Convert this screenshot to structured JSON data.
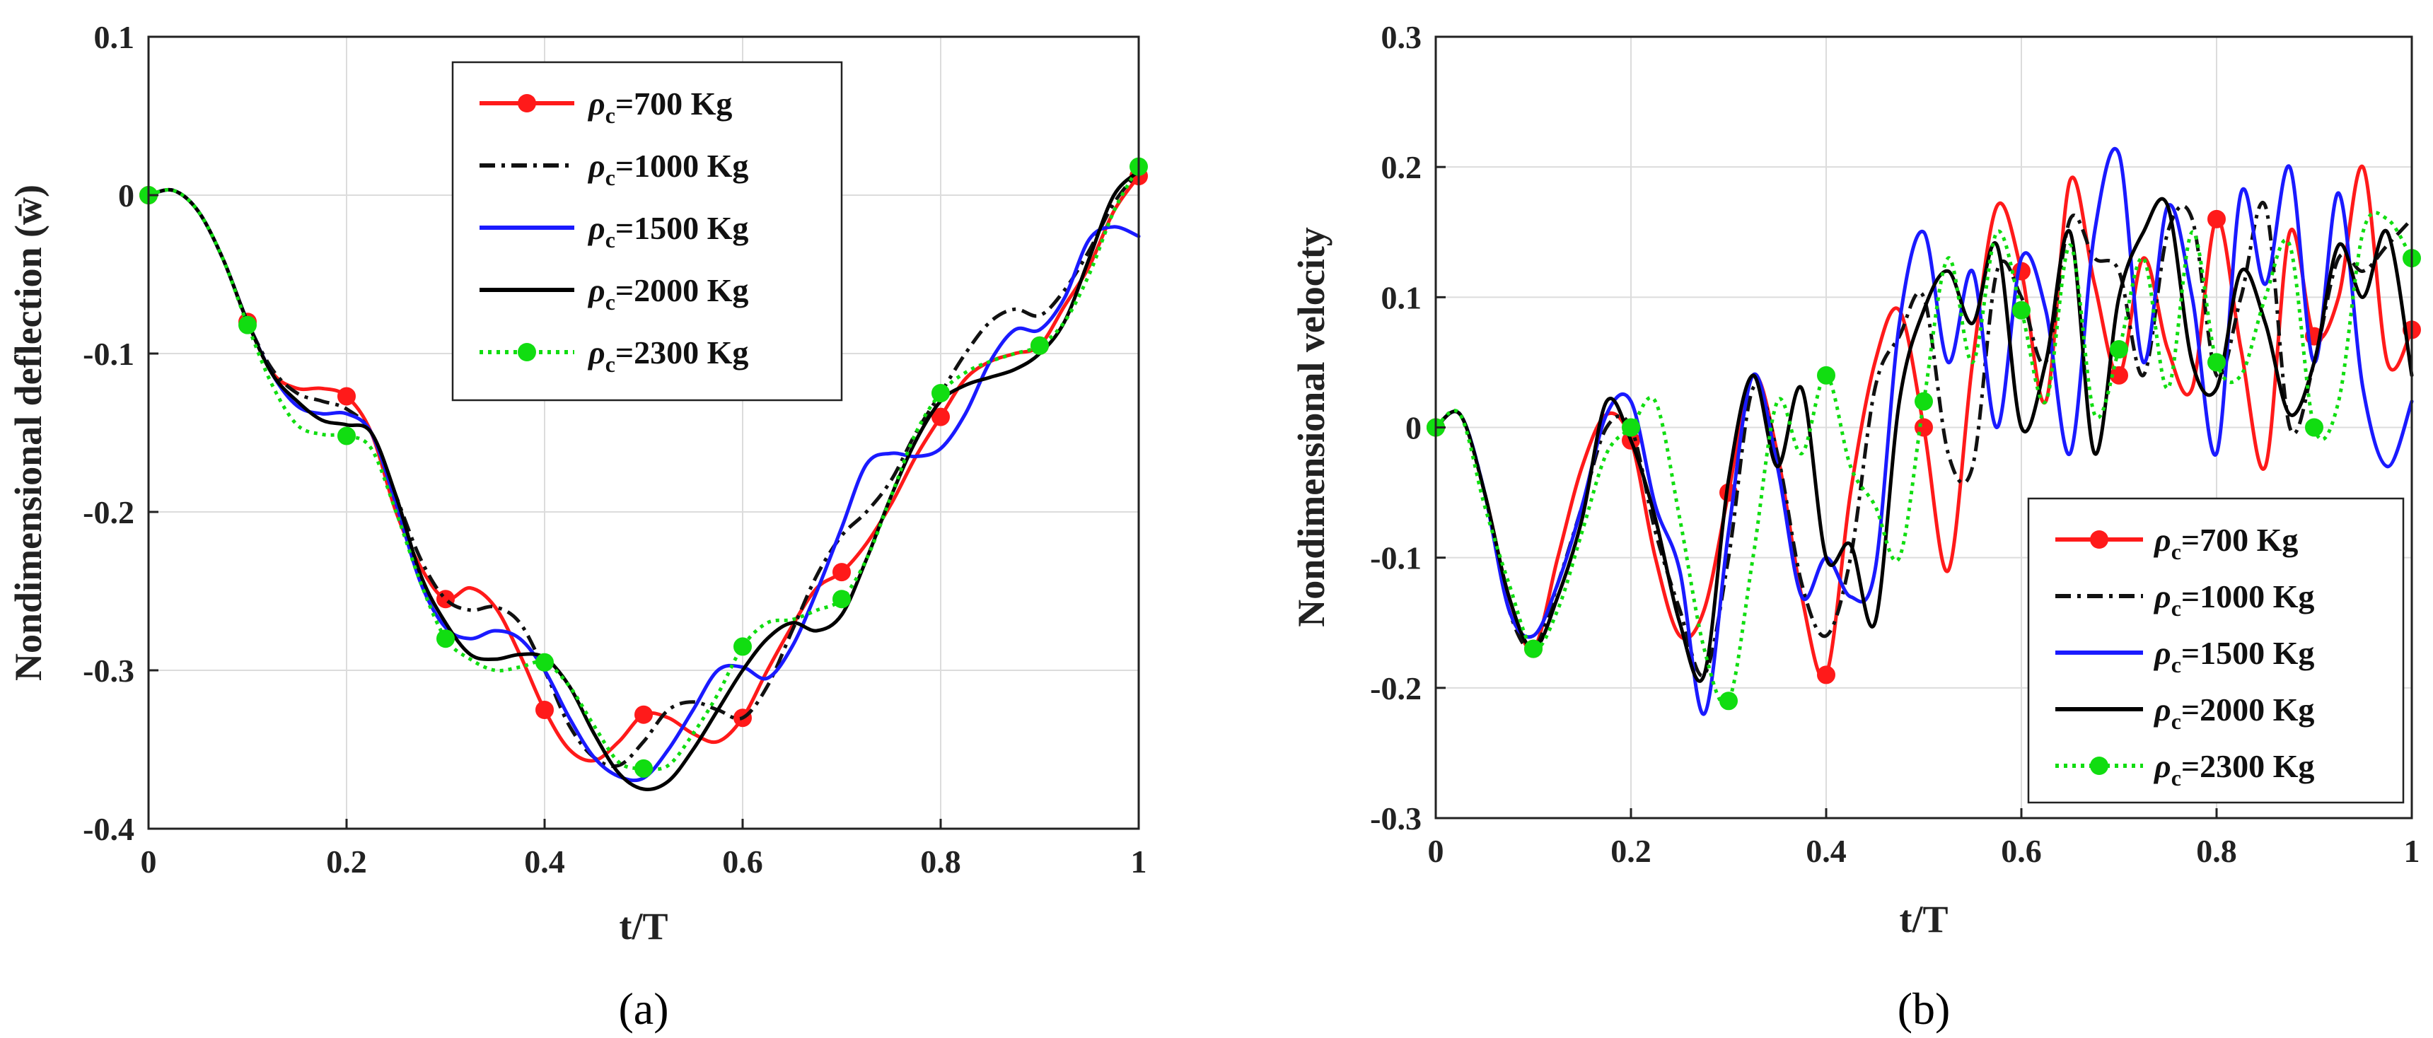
{
  "chart_data": [
    {
      "type": "line",
      "caption": "(a)",
      "xlabel": "t/T",
      "ylabel": "Nondimensional deflection (w̄)",
      "xlim": [
        0,
        1
      ],
      "ylim": [
        -0.4,
        0.1
      ],
      "xticks": [
        "0",
        "0.2",
        "0.4",
        "0.6",
        "0.8",
        "1"
      ],
      "yticks": [
        "-0.4",
        "-0.3",
        "-0.2",
        "-0.1",
        "0",
        "0.1"
      ],
      "grid": true,
      "legend_position": "top-right",
      "x": [
        0,
        0.025,
        0.05,
        0.075,
        0.1,
        0.125,
        0.15,
        0.175,
        0.2,
        0.225,
        0.25,
        0.275,
        0.3,
        0.325,
        0.35,
        0.375,
        0.4,
        0.425,
        0.45,
        0.475,
        0.5,
        0.525,
        0.55,
        0.575,
        0.6,
        0.625,
        0.65,
        0.675,
        0.7,
        0.725,
        0.75,
        0.775,
        0.8,
        0.825,
        0.85,
        0.875,
        0.9,
        0.925,
        0.95,
        0.975,
        1
      ],
      "series": [
        {
          "name": "ρc=700 Kg",
          "symbol": "ρ",
          "subscript": "c",
          "rest": "=700 Kg",
          "color": "#ff1a1a",
          "dash": "",
          "marker": true,
          "values": [
            0,
            0.003,
            -0.01,
            -0.04,
            -0.08,
            -0.112,
            -0.122,
            -0.122,
            -0.127,
            -0.15,
            -0.2,
            -0.235,
            -0.255,
            -0.248,
            -0.26,
            -0.29,
            -0.325,
            -0.35,
            -0.357,
            -0.345,
            -0.328,
            -0.33,
            -0.34,
            -0.345,
            -0.33,
            -0.3,
            -0.272,
            -0.248,
            -0.238,
            -0.22,
            -0.195,
            -0.165,
            -0.14,
            -0.116,
            -0.105,
            -0.1,
            -0.095,
            -0.07,
            -0.045,
            -0.01,
            0.012
          ]
        },
        {
          "name": "ρc=1000 Kg",
          "symbol": "ρ",
          "subscript": "c",
          "rest": "=1000 Kg",
          "color": "#111111",
          "dash": "22,9,5,9",
          "marker": false,
          "values": [
            0,
            0.003,
            -0.01,
            -0.04,
            -0.08,
            -0.11,
            -0.125,
            -0.13,
            -0.135,
            -0.15,
            -0.19,
            -0.23,
            -0.255,
            -0.262,
            -0.26,
            -0.27,
            -0.3,
            -0.335,
            -0.355,
            -0.36,
            -0.345,
            -0.325,
            -0.32,
            -0.325,
            -0.33,
            -0.31,
            -0.275,
            -0.24,
            -0.215,
            -0.2,
            -0.18,
            -0.15,
            -0.125,
            -0.1,
            -0.08,
            -0.072,
            -0.076,
            -0.06,
            -0.035,
            -0.005,
            0.015
          ]
        },
        {
          "name": "ρc=1500 Kg",
          "symbol": "ρ",
          "subscript": "c",
          "rest": "=1500 Kg",
          "color": "#1a1aff",
          "dash": "",
          "marker": false,
          "values": [
            0,
            0.003,
            -0.01,
            -0.04,
            -0.08,
            -0.113,
            -0.133,
            -0.138,
            -0.138,
            -0.15,
            -0.195,
            -0.245,
            -0.273,
            -0.28,
            -0.275,
            -0.28,
            -0.3,
            -0.33,
            -0.355,
            -0.367,
            -0.368,
            -0.35,
            -0.325,
            -0.3,
            -0.298,
            -0.305,
            -0.285,
            -0.25,
            -0.21,
            -0.17,
            -0.163,
            -0.165,
            -0.16,
            -0.138,
            -0.105,
            -0.085,
            -0.085,
            -0.065,
            -0.028,
            -0.02,
            -0.026
          ]
        },
        {
          "name": "ρc=2000 Kg",
          "symbol": "ρ",
          "subscript": "c",
          "rest": "=2000 Kg",
          "color": "#000000",
          "dash": "",
          "marker": false,
          "values": [
            0,
            0.003,
            -0.01,
            -0.04,
            -0.08,
            -0.113,
            -0.13,
            -0.142,
            -0.145,
            -0.15,
            -0.19,
            -0.24,
            -0.27,
            -0.29,
            -0.293,
            -0.29,
            -0.292,
            -0.31,
            -0.34,
            -0.365,
            -0.375,
            -0.37,
            -0.35,
            -0.325,
            -0.3,
            -0.28,
            -0.27,
            -0.275,
            -0.265,
            -0.23,
            -0.19,
            -0.155,
            -0.13,
            -0.12,
            -0.115,
            -0.11,
            -0.1,
            -0.08,
            -0.04,
            0,
            0.015
          ]
        },
        {
          "name": "ρc=2300 Kg",
          "symbol": "ρ",
          "subscript": "c",
          "rest": "=2300 Kg",
          "color": "#11dd11",
          "dash": "5,7",
          "marker": true,
          "values": [
            0,
            0.003,
            -0.01,
            -0.04,
            -0.082,
            -0.12,
            -0.145,
            -0.151,
            -0.152,
            -0.16,
            -0.2,
            -0.245,
            -0.28,
            -0.293,
            -0.3,
            -0.298,
            -0.295,
            -0.31,
            -0.335,
            -0.358,
            -0.362,
            -0.36,
            -0.34,
            -0.315,
            -0.285,
            -0.27,
            -0.268,
            -0.262,
            -0.255,
            -0.23,
            -0.19,
            -0.15,
            -0.125,
            -0.112,
            -0.105,
            -0.1,
            -0.095,
            -0.08,
            -0.05,
            -0.01,
            0.018
          ]
        }
      ]
    },
    {
      "type": "line",
      "caption": "(b)",
      "xlabel": "t/T",
      "ylabel": "Nondimensional velocity",
      "xlim": [
        0,
        1
      ],
      "ylim": [
        -0.3,
        0.3
      ],
      "xticks": [
        "0",
        "0.2",
        "0.4",
        "0.6",
        "0.8",
        "1"
      ],
      "yticks": [
        "-0.3",
        "-0.2",
        "-0.1",
        "0",
        "0.1",
        "0.2",
        "0.3"
      ],
      "grid": true,
      "legend_position": "bottom-right",
      "x": [
        0,
        0.025,
        0.05,
        0.075,
        0.1,
        0.125,
        0.15,
        0.175,
        0.2,
        0.225,
        0.25,
        0.275,
        0.3,
        0.325,
        0.35,
        0.375,
        0.4,
        0.425,
        0.45,
        0.475,
        0.5,
        0.525,
        0.55,
        0.575,
        0.6,
        0.625,
        0.65,
        0.675,
        0.7,
        0.725,
        0.75,
        0.775,
        0.8,
        0.825,
        0.85,
        0.875,
        0.9,
        0.925,
        0.95,
        0.975,
        1
      ],
      "series": [
        {
          "name": "ρc=700 Kg",
          "symbol": "ρ",
          "subscript": "c",
          "rest": "=700 Kg",
          "color": "#ff1a1a",
          "dash": "",
          "marker": true,
          "values": [
            0,
            0.01,
            -0.05,
            -0.13,
            -0.17,
            -0.1,
            -0.03,
            0.01,
            -0.01,
            -0.1,
            -0.16,
            -0.14,
            -0.05,
            0.04,
            -0.02,
            -0.13,
            -0.19,
            -0.05,
            0.05,
            0.09,
            0.0,
            -0.11,
            0.05,
            0.17,
            0.12,
            0.02,
            0.19,
            0.11,
            0.04,
            0.13,
            0.06,
            0.03,
            0.16,
            0.06,
            -0.03,
            0.15,
            0.07,
            0.1,
            0.2,
            0.05,
            0.075
          ]
        },
        {
          "name": "ρc=1000 Kg",
          "symbol": "ρ",
          "subscript": "c",
          "rest": "=1000 Kg",
          "color": "#111111",
          "dash": "22,9,5,9",
          "marker": false,
          "values": [
            0,
            0.01,
            -0.05,
            -0.14,
            -0.17,
            -0.12,
            -0.06,
            0.0,
            0.0,
            -0.08,
            -0.14,
            -0.19,
            -0.1,
            0.03,
            -0.02,
            -0.12,
            -0.16,
            -0.1,
            0.03,
            0.07,
            0.1,
            -0.02,
            -0.03,
            0.12,
            0.1,
            0.05,
            0.16,
            0.13,
            0.12,
            0.04,
            0.15,
            0.16,
            0.04,
            0.1,
            0.17,
            0.0,
            0.05,
            0.13,
            0.12,
            0.14,
            0.16
          ]
        },
        {
          "name": "ρc=1500 Kg",
          "symbol": "ρ",
          "subscript": "c",
          "rest": "=1500 Kg",
          "color": "#1a1aff",
          "dash": "",
          "marker": false,
          "values": [
            0,
            0.01,
            -0.05,
            -0.14,
            -0.16,
            -0.12,
            -0.06,
            0.01,
            0.02,
            -0.06,
            -0.11,
            -0.22,
            -0.08,
            0.04,
            -0.03,
            -0.13,
            -0.1,
            -0.13,
            -0.11,
            0.08,
            0.15,
            0.05,
            0.12,
            0.0,
            0.13,
            0.09,
            -0.02,
            0.15,
            0.21,
            0.05,
            0.17,
            0.1,
            -0.02,
            0.18,
            0.11,
            0.2,
            0.05,
            0.18,
            0.03,
            -0.03,
            0.02
          ]
        },
        {
          "name": "ρc=2000 Kg",
          "symbol": "ρ",
          "subscript": "c",
          "rest": "=2000 Kg",
          "color": "#000000",
          "dash": "",
          "marker": false,
          "values": [
            0,
            0.01,
            -0.05,
            -0.13,
            -0.17,
            -0.13,
            -0.07,
            0.02,
            -0.01,
            -0.07,
            -0.15,
            -0.19,
            -0.04,
            0.04,
            -0.03,
            0.03,
            -0.1,
            -0.09,
            -0.15,
            0.02,
            0.09,
            0.12,
            0.08,
            0.14,
            0.0,
            0.05,
            0.15,
            -0.02,
            0.1,
            0.15,
            0.17,
            0.05,
            0.03,
            0.12,
            0.08,
            0.01,
            0.05,
            0.14,
            0.1,
            0.15,
            0.04
          ]
        },
        {
          "name": "ρc=2300 Kg",
          "symbol": "ρ",
          "subscript": "c",
          "rest": "=2300 Kg",
          "color": "#11dd11",
          "dash": "5,7",
          "marker": true,
          "values": [
            0,
            0.01,
            -0.06,
            -0.12,
            -0.17,
            -0.14,
            -0.08,
            -0.02,
            0.0,
            0.02,
            -0.07,
            -0.17,
            -0.21,
            -0.1,
            0.02,
            -0.02,
            0.04,
            -0.03,
            -0.06,
            -0.1,
            0.02,
            0.13,
            0.05,
            0.15,
            0.09,
            0.02,
            0.14,
            0.01,
            0.06,
            0.13,
            0.03,
            0.15,
            0.05,
            0.04,
            0.1,
            0.14,
            0.0,
            0.02,
            0.15,
            0.16,
            0.13
          ]
        }
      ]
    }
  ]
}
